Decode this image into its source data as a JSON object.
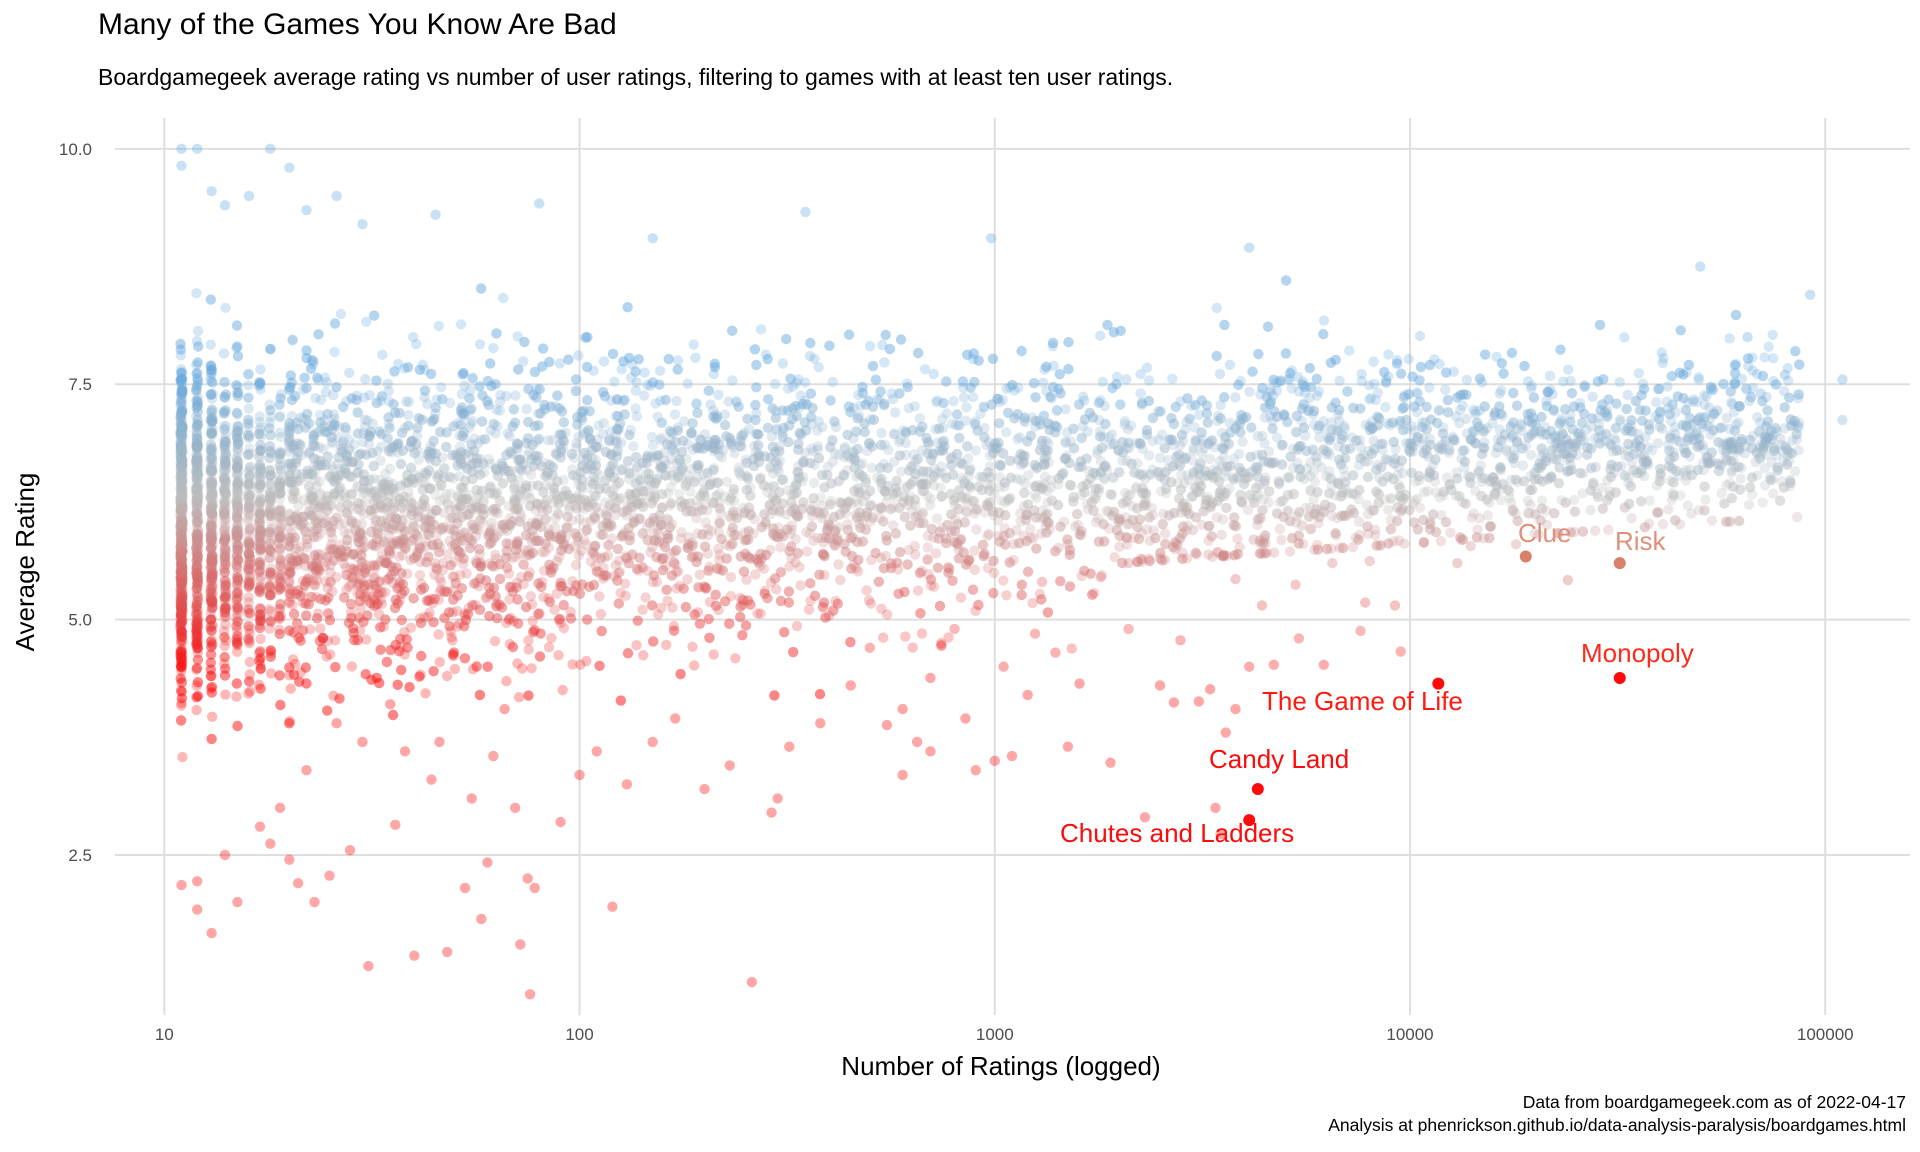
{
  "header": {
    "title": "Many of the Games You Know Are Bad",
    "subtitle": "Boardgamegeek average rating vs number of user ratings, filtering to games with at least ten user ratings."
  },
  "caption": {
    "line1": "Data from boardgamegeek.com as of 2022-04-17",
    "line2": "Analysis at phenrickson.github.io/data-analysis-paralysis/boardgames.html"
  },
  "colors": {
    "high": "#63a9e0",
    "mid": "#bdbdbd",
    "low": "#ff0000",
    "grid": "#dedede"
  },
  "chart_data": {
    "type": "scatter",
    "xlabel": "Number of Ratings (logged)",
    "ylabel": "Average Rating",
    "x_scale": "log10",
    "xlim": [
      8.5,
      160000
    ],
    "ylim": [
      0.8,
      10.2
    ],
    "x_ticks": [
      10,
      100,
      1000,
      10000,
      100000
    ],
    "x_tick_labels": [
      "10",
      "100",
      "1000",
      "10000",
      "100000"
    ],
    "y_ticks": [
      2.5,
      5.0,
      7.5,
      10.0
    ],
    "y_tick_labels": [
      "2.5",
      "5.0",
      "7.5",
      "10.0"
    ],
    "grid": true,
    "legend": "none",
    "color_encoding": "gradient by average rating: blue (high) to grey (~6.3) to red (low)",
    "highlighted_games": [
      {
        "name": "Clue",
        "ratings": 19000,
        "rating": 5.67
      },
      {
        "name": "Risk",
        "ratings": 32000,
        "rating": 5.6
      },
      {
        "name": "Monopoly",
        "ratings": 32000,
        "rating": 4.38
      },
      {
        "name": "The Game of Life",
        "ratings": 11700,
        "rating": 4.32
      },
      {
        "name": "Candy Land",
        "ratings": 4300,
        "rating": 3.2
      },
      {
        "name": "Chutes and Ladders",
        "ratings": 4100,
        "rating": 2.87
      }
    ],
    "points": [
      [
        11,
        10.0
      ],
      [
        12,
        10.0
      ],
      [
        18,
        10.0
      ],
      [
        11,
        9.82
      ],
      [
        13,
        9.55
      ],
      [
        20,
        9.8
      ],
      [
        14,
        9.4
      ],
      [
        16,
        9.5
      ],
      [
        22,
        9.35
      ],
      [
        26,
        9.5
      ],
      [
        30,
        9.2
      ],
      [
        45,
        9.3
      ],
      [
        80,
        9.42
      ],
      [
        150,
        9.05
      ],
      [
        350,
        9.33
      ],
      [
        980,
        9.05
      ],
      [
        4100,
        8.95
      ],
      [
        50000,
        8.75
      ],
      [
        92000,
        8.45
      ],
      [
        110000,
        7.55
      ],
      [
        110000,
        7.12
      ],
      [
        80000,
        7.6
      ],
      [
        55000,
        7.22
      ],
      [
        40000,
        7.05
      ],
      [
        46000,
        6.77
      ],
      [
        65000,
        8.0
      ],
      [
        70000,
        7.4
      ],
      [
        28000,
        6.62
      ],
      [
        20000,
        7.0
      ],
      [
        15000,
        6.5
      ],
      [
        9500,
        6.3
      ],
      [
        7000,
        6.1
      ],
      [
        5500,
        6.0
      ],
      [
        4200,
        5.85
      ],
      [
        3000,
        5.95
      ],
      [
        2500,
        5.65
      ],
      [
        2100,
        5.6
      ],
      [
        1800,
        5.45
      ],
      [
        1500,
        5.8
      ],
      [
        1300,
        5.4
      ],
      [
        18000,
        5.8
      ],
      [
        24000,
        5.42
      ],
      [
        14000,
        5.78
      ],
      [
        13000,
        5.6
      ],
      [
        8000,
        5.62
      ],
      [
        6500,
        5.6
      ],
      [
        5300,
        5.37
      ],
      [
        3800,
        5.43
      ],
      [
        4400,
        5.15
      ],
      [
        7800,
        5.18
      ],
      [
        9200,
        5.15
      ],
      [
        7600,
        4.88
      ],
      [
        9500,
        4.66
      ],
      [
        6200,
        4.52
      ],
      [
        5400,
        4.8
      ],
      [
        4700,
        4.52
      ],
      [
        3300,
        4.26
      ],
      [
        2500,
        4.3
      ],
      [
        3100,
        4.13
      ],
      [
        2700,
        4.12
      ],
      [
        2100,
        4.9
      ],
      [
        1600,
        4.32
      ],
      [
        4100,
        4.5
      ],
      [
        2800,
        4.78
      ],
      [
        3800,
        4.05
      ],
      [
        1900,
        3.48
      ],
      [
        1500,
        3.65
      ],
      [
        1000,
        3.5
      ],
      [
        900,
        3.4
      ],
      [
        850,
        3.95
      ],
      [
        700,
        3.6
      ],
      [
        600,
        3.35
      ],
      [
        550,
        3.88
      ],
      [
        650,
        3.7
      ],
      [
        1100,
        3.55
      ],
      [
        1200,
        4.2
      ],
      [
        2300,
        2.9
      ],
      [
        3400,
        3.0
      ],
      [
        3600,
        3.8
      ],
      [
        3500,
        2.72
      ],
      [
        800,
        4.9
      ],
      [
        1050,
        4.5
      ],
      [
        1400,
        4.65
      ],
      [
        1250,
        4.85
      ],
      [
        700,
        4.38
      ],
      [
        600,
        4.05
      ],
      [
        500,
        4.7
      ],
      [
        450,
        4.3
      ],
      [
        380,
        3.9
      ],
      [
        320,
        3.65
      ],
      [
        300,
        3.1
      ],
      [
        290,
        2.95
      ],
      [
        260,
        1.15
      ],
      [
        230,
        3.45
      ],
      [
        200,
        3.2
      ],
      [
        170,
        3.95
      ],
      [
        150,
        3.7
      ],
      [
        130,
        3.25
      ],
      [
        120,
        1.95
      ],
      [
        110,
        3.6
      ],
      [
        100,
        3.35
      ],
      [
        90,
        2.85
      ],
      [
        75,
        2.25
      ],
      [
        72,
        1.55
      ],
      [
        70,
        3.0
      ],
      [
        66,
        4.05
      ],
      [
        62,
        3.55
      ],
      [
        60,
        2.42
      ],
      [
        58,
        1.82
      ],
      [
        55,
        3.1
      ],
      [
        53,
        2.15
      ],
      [
        48,
        1.47
      ],
      [
        46,
        3.7
      ],
      [
        44,
        3.3
      ],
      [
        40,
        1.43
      ],
      [
        38,
        3.6
      ],
      [
        36,
        2.82
      ],
      [
        35,
        4.1
      ],
      [
        31,
        1.32
      ],
      [
        30,
        3.7
      ],
      [
        28,
        2.55
      ],
      [
        26,
        3.9
      ],
      [
        25,
        2.28
      ],
      [
        23,
        2.0
      ],
      [
        22,
        3.4
      ],
      [
        21,
        2.2
      ],
      [
        20,
        2.45
      ],
      [
        19,
        3.0
      ],
      [
        18,
        2.62
      ],
      [
        17,
        2.8
      ],
      [
        15,
        2.0
      ],
      [
        14,
        2.5
      ],
      [
        13,
        1.67
      ],
      [
        12,
        1.92
      ],
      [
        12,
        2.22
      ],
      [
        11,
        2.18
      ],
      [
        76,
        1.02
      ],
      [
        78,
        2.15
      ]
    ]
  },
  "annotations": {
    "clue": "Clue",
    "risk": "Risk",
    "monopoly": "Monopoly",
    "life": "The Game of Life",
    "candyland": "Candy Land",
    "chutes": "Chutes and Ladders"
  }
}
